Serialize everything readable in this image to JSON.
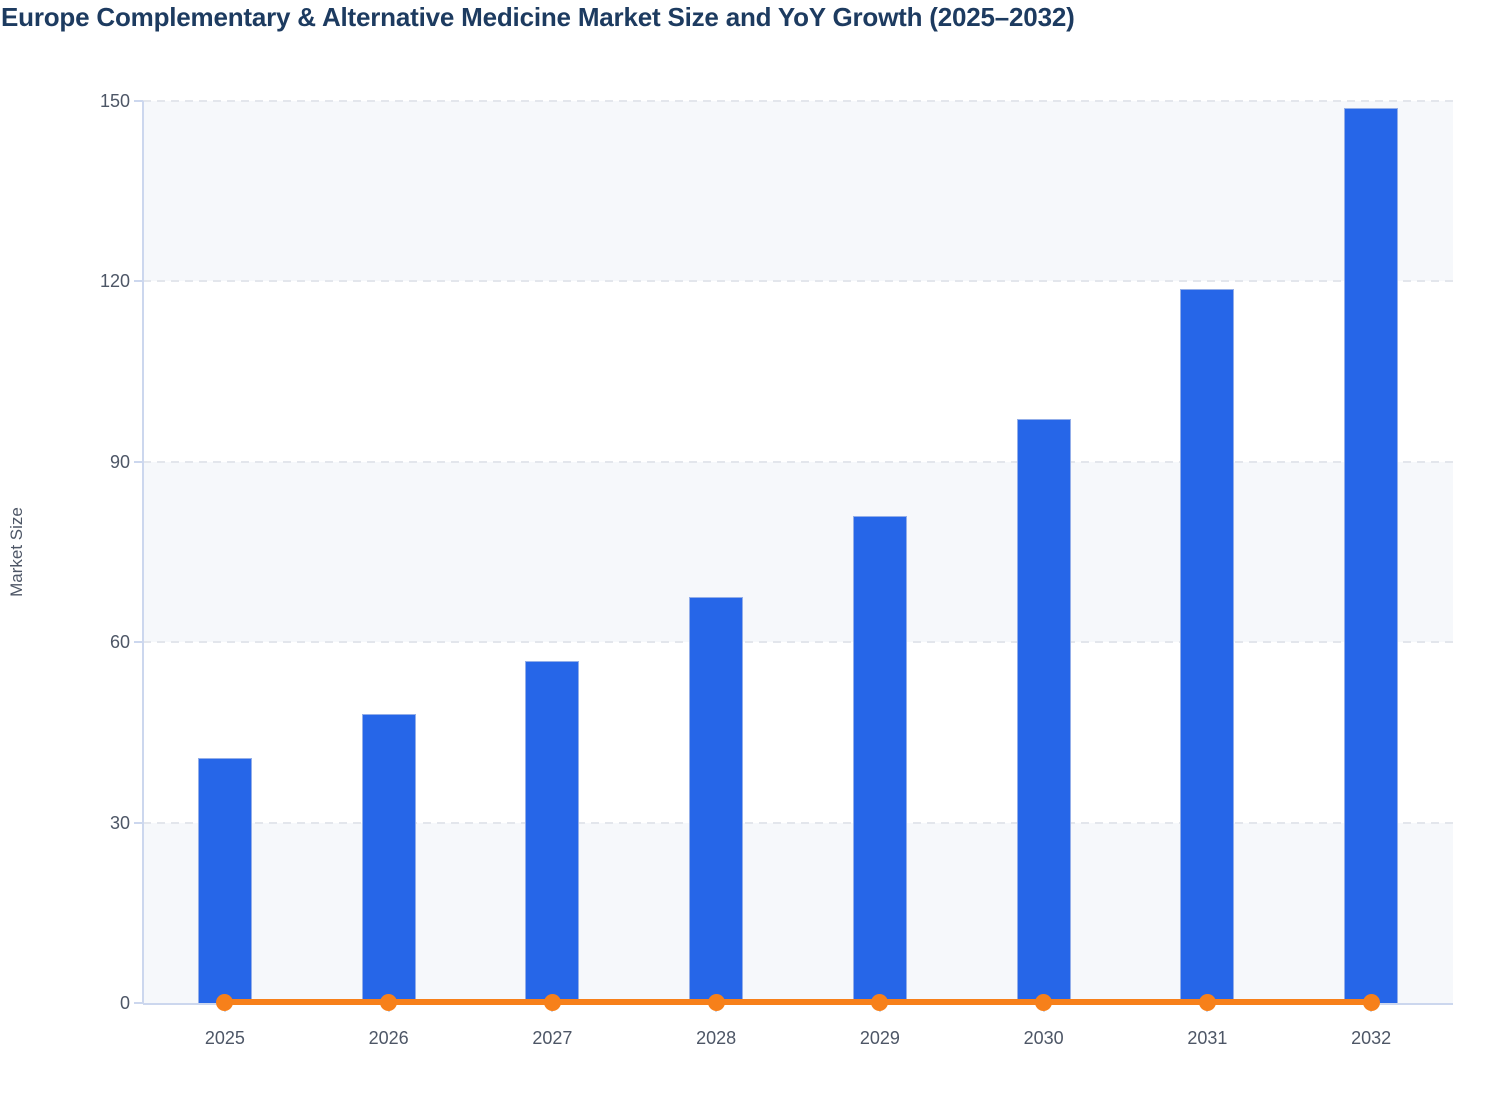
{
  "title": "Europe Complementary & Alternative Medicine Market Size and YoY Growth (2025–2032)",
  "y_axis": {
    "label": "Market Size",
    "tick_labels": [
      "0",
      "30",
      "60",
      "90",
      "120",
      "150"
    ]
  },
  "x_axis": {
    "tick_labels": [
      "2025",
      "2026",
      "2027",
      "2028",
      "2029",
      "2030",
      "2031",
      "2032"
    ]
  },
  "chart_data": {
    "type": "bar",
    "title": "Europe Complementary & Alternative Medicine Market Size and YoY Growth (2025–2032)",
    "categories": [
      "2025",
      "2026",
      "2027",
      "2028",
      "2029",
      "2030",
      "2031",
      "2032"
    ],
    "series": [
      {
        "name": "Market Size",
        "type": "bar",
        "color": "#2666e8",
        "values": [
          40.7,
          48.1,
          56.9,
          67.5,
          81.0,
          97.2,
          118.7,
          148.8
        ]
      },
      {
        "name": "YoY Growth",
        "type": "line",
        "color": "#f7801a",
        "values": [
          0,
          0,
          0,
          0,
          0,
          0,
          0,
          0
        ],
        "note_rendered_flat_at_zero": true
      }
    ],
    "xlabel": "",
    "ylabel": "Market Size",
    "ylim": [
      0,
      150
    ],
    "yticks": [
      0,
      30,
      60,
      90,
      120,
      150
    ],
    "grid": "horizontal-dashed",
    "legend_position": "none",
    "plot_background_bands_alternating": [
      "#f6f8fb",
      "#ffffff"
    ]
  },
  "colors": {
    "bar_fill": "#2666e8",
    "bar_border": "#93aee9",
    "line": "#f7801a",
    "dot": "#f7801a",
    "title_text": "#1d3b60",
    "axis_text": "#4d5666",
    "gridline": "#e3e6ec",
    "axis_line": "#ccd7ee",
    "band_light": "#f6f8fb",
    "band_white": "#ffffff",
    "background": "#ffffff"
  }
}
